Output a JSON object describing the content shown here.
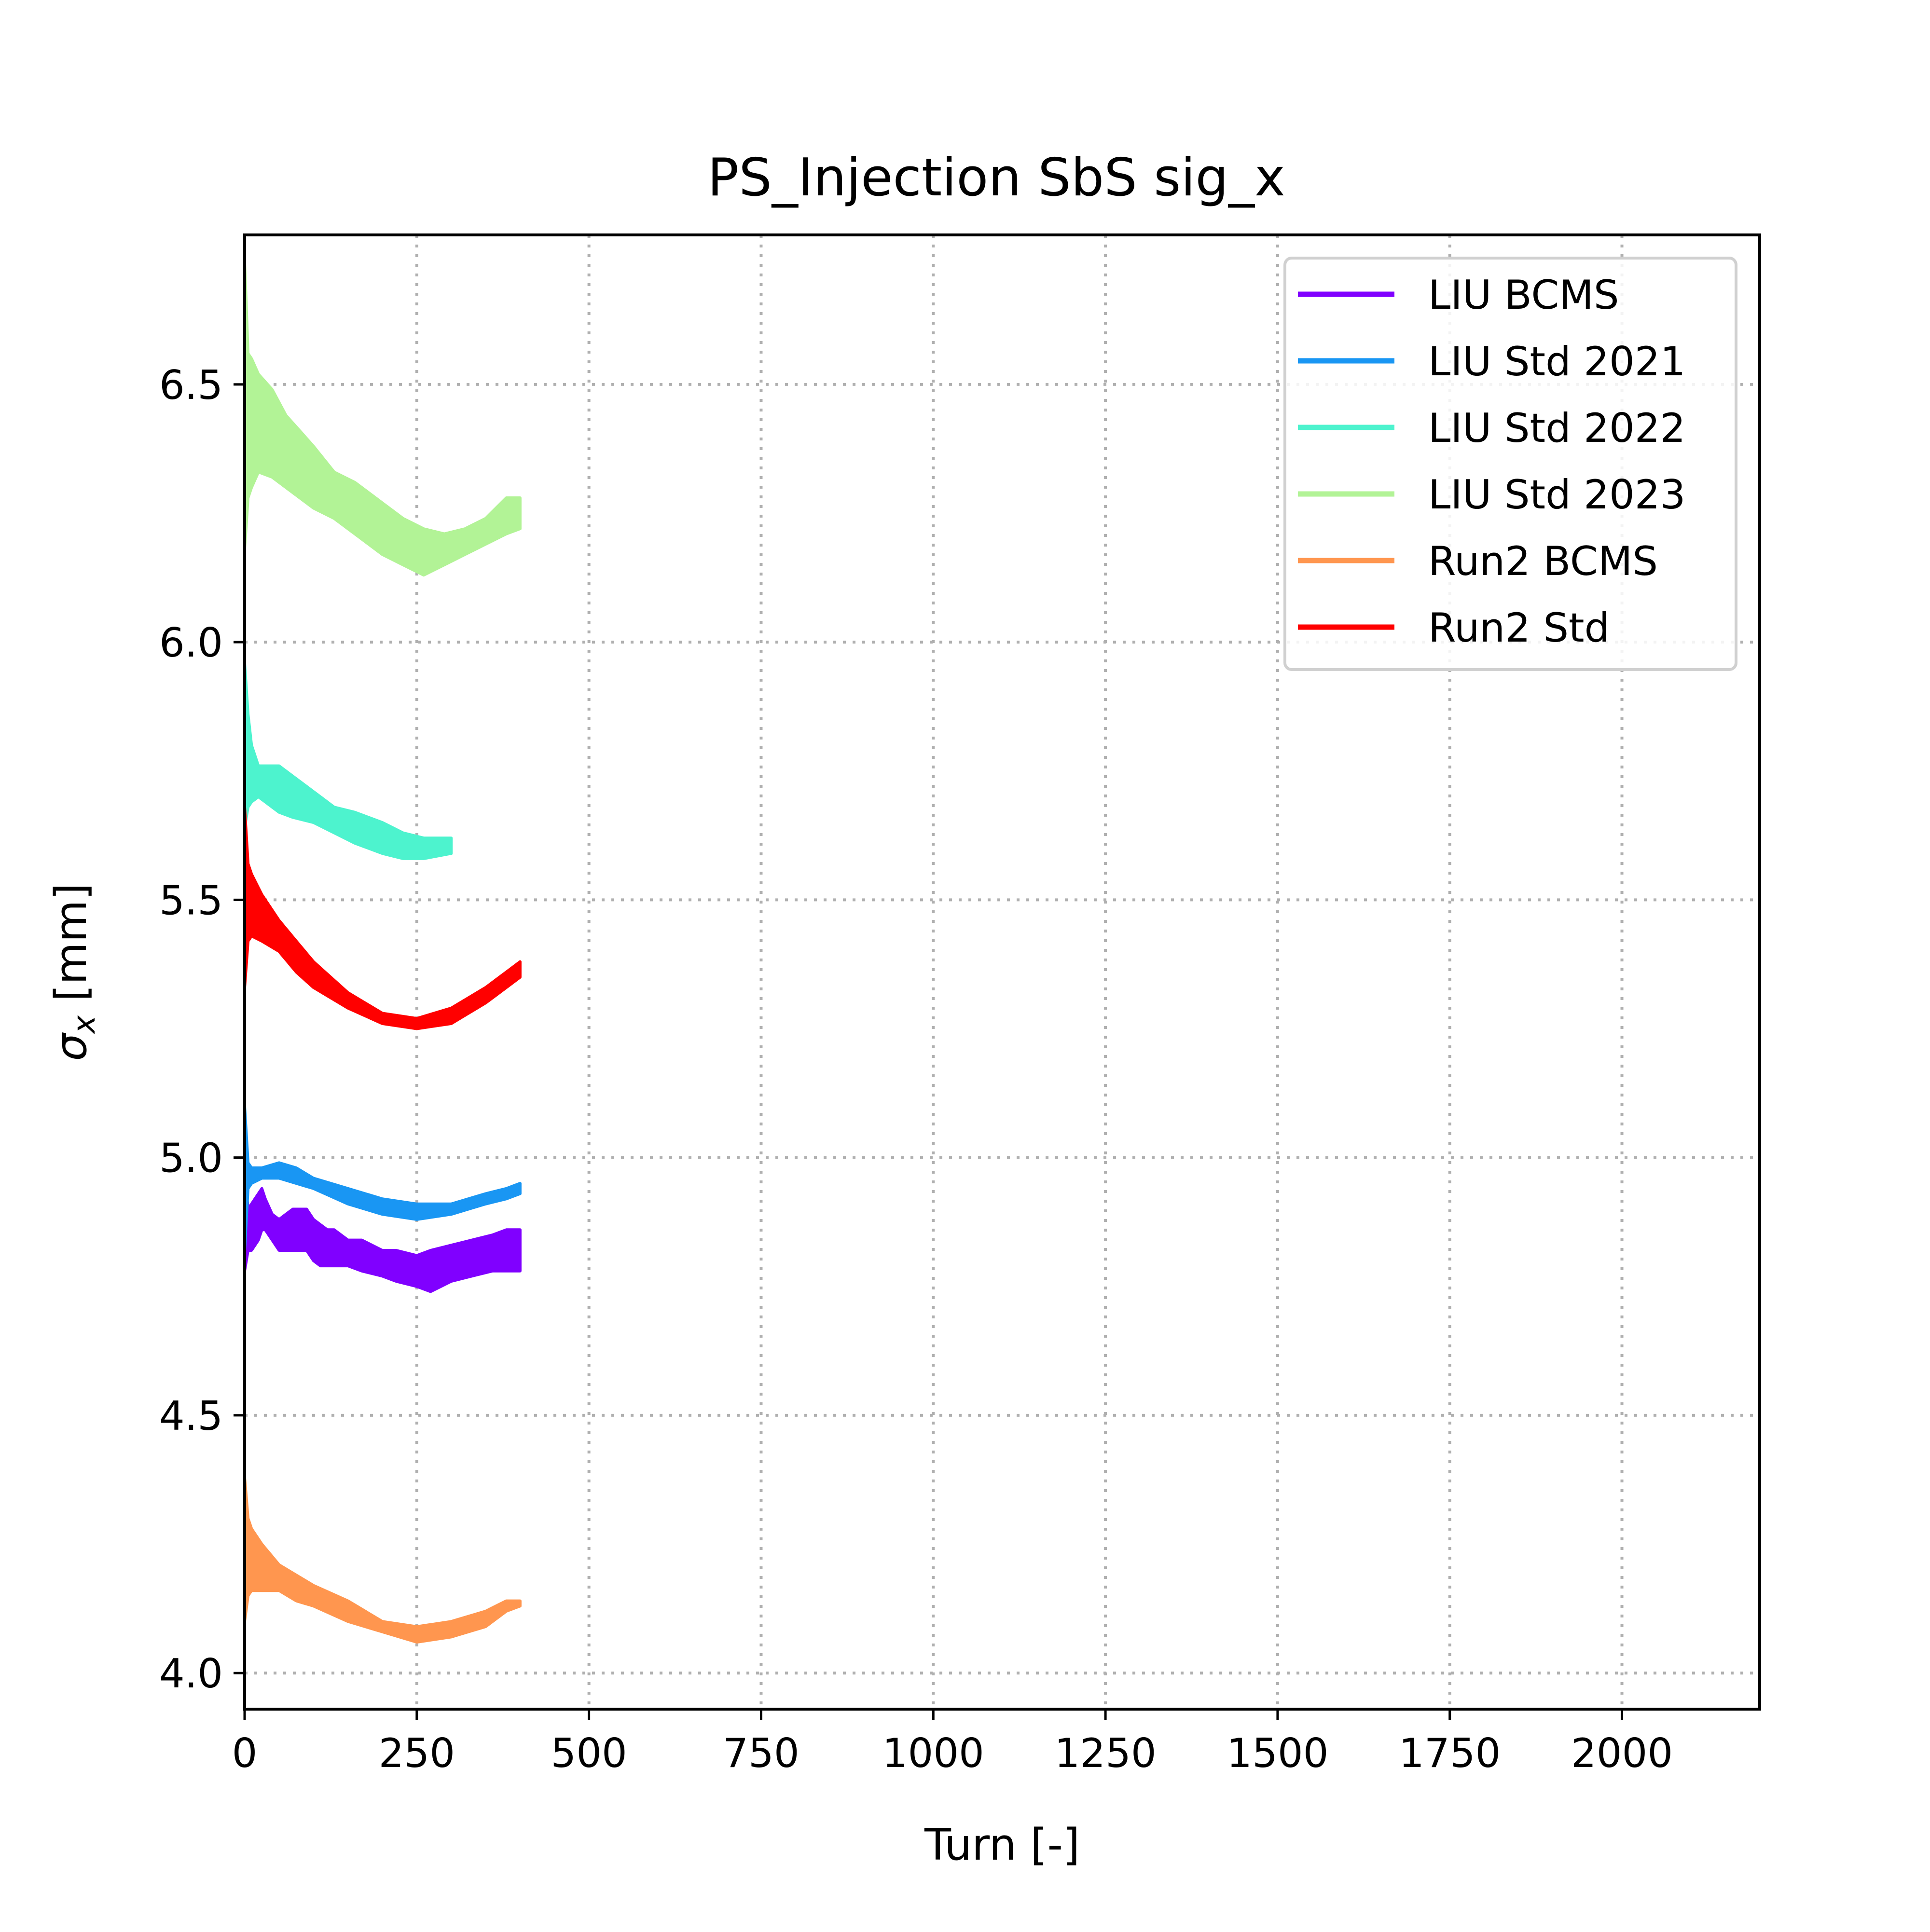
{
  "chart_data": {
    "type": "line",
    "title": "PS_Injection SbS sig_x",
    "xlabel": "Turn [-]",
    "ylabel_symbol": "σ",
    "ylabel_subscript": "x",
    "ylabel_unit": " [mm]",
    "xlim": [
      0,
      2200
    ],
    "ylim": [
      3.93,
      6.79
    ],
    "xticks": [
      0,
      250,
      500,
      750,
      1000,
      1250,
      1500,
      1750,
      2000
    ],
    "xtick_labels": [
      "0",
      "250",
      "500",
      "750",
      "1000",
      "1250",
      "1500",
      "1750",
      "2000"
    ],
    "yticks": [
      4.0,
      4.5,
      5.0,
      5.5,
      6.0,
      6.5
    ],
    "ytick_labels": [
      "4.0",
      "4.5",
      "5.0",
      "5.5",
      "6.0",
      "6.5"
    ],
    "grid": true,
    "legend_position": "top-right",
    "series": [
      {
        "name": "LIU BCMS",
        "color": "#8000ff",
        "x": [
          0,
          5,
          10,
          20,
          25,
          30,
          40,
          50,
          60,
          70,
          80,
          90,
          100,
          110,
          120,
          130,
          150,
          170,
          200,
          220,
          250,
          270,
          300,
          330,
          360,
          380,
          400
        ],
        "upper": [
          4.98,
          4.9,
          4.91,
          4.93,
          4.94,
          4.92,
          4.89,
          4.88,
          4.89,
          4.9,
          4.9,
          4.9,
          4.88,
          4.87,
          4.86,
          4.86,
          4.84,
          4.84,
          4.82,
          4.82,
          4.81,
          4.82,
          4.83,
          4.84,
          4.85,
          4.86,
          4.86
        ],
        "lower": [
          4.78,
          4.82,
          4.82,
          4.84,
          4.86,
          4.86,
          4.84,
          4.82,
          4.82,
          4.82,
          4.82,
          4.82,
          4.8,
          4.79,
          4.79,
          4.79,
          4.79,
          4.78,
          4.77,
          4.76,
          4.75,
          4.74,
          4.76,
          4.77,
          4.78,
          4.78,
          4.78
        ]
      },
      {
        "name": "LIU Std 2021",
        "color": "#1996f3",
        "x": [
          0,
          5,
          10,
          25,
          50,
          75,
          100,
          150,
          200,
          250,
          300,
          350,
          380,
          400
        ],
        "upper": [
          5.1,
          4.99,
          4.98,
          4.98,
          4.99,
          4.98,
          4.96,
          4.94,
          4.92,
          4.91,
          4.91,
          4.93,
          4.94,
          4.95
        ],
        "lower": [
          4.82,
          4.94,
          4.95,
          4.96,
          4.96,
          4.95,
          4.94,
          4.91,
          4.89,
          4.88,
          4.89,
          4.91,
          4.92,
          4.93
        ]
      },
      {
        "name": "LIU Std 2022",
        "color": "#4df3ce",
        "x": [
          0,
          5,
          10,
          20,
          30,
          50,
          70,
          100,
          130,
          160,
          200,
          230,
          260,
          300
        ],
        "upper": [
          5.96,
          5.86,
          5.8,
          5.76,
          5.76,
          5.76,
          5.74,
          5.71,
          5.68,
          5.67,
          5.65,
          5.63,
          5.62,
          5.62
        ],
        "lower": [
          5.64,
          5.68,
          5.69,
          5.7,
          5.69,
          5.67,
          5.66,
          5.65,
          5.63,
          5.61,
          5.59,
          5.58,
          5.58,
          5.59
        ]
      },
      {
        "name": "LIU Std 2023",
        "color": "#b2f396",
        "x": [
          0,
          5,
          10,
          20,
          40,
          60,
          80,
          100,
          130,
          160,
          200,
          230,
          260,
          290,
          320,
          350,
          380,
          400
        ],
        "upper": [
          6.74,
          6.56,
          6.55,
          6.52,
          6.49,
          6.44,
          6.41,
          6.38,
          6.33,
          6.31,
          6.27,
          6.24,
          6.22,
          6.21,
          6.22,
          6.24,
          6.28,
          6.28
        ],
        "lower": [
          6.18,
          6.28,
          6.3,
          6.33,
          6.32,
          6.3,
          6.28,
          6.26,
          6.24,
          6.21,
          6.17,
          6.15,
          6.13,
          6.15,
          6.17,
          6.19,
          6.21,
          6.22
        ]
      },
      {
        "name": "Run2 BCMS",
        "color": "#ff964f",
        "x": [
          0,
          5,
          10,
          25,
          50,
          75,
          100,
          150,
          200,
          250,
          300,
          350,
          380,
          400
        ],
        "upper": [
          4.38,
          4.3,
          4.28,
          4.25,
          4.21,
          4.19,
          4.17,
          4.14,
          4.1,
          4.09,
          4.1,
          4.12,
          4.14,
          4.14
        ],
        "lower": [
          4.1,
          4.15,
          4.16,
          4.16,
          4.16,
          4.14,
          4.13,
          4.1,
          4.08,
          4.06,
          4.07,
          4.09,
          4.12,
          4.13
        ]
      },
      {
        "name": "Run2 Std",
        "color": "#ff0000",
        "x": [
          0,
          5,
          10,
          25,
          50,
          75,
          100,
          150,
          200,
          250,
          300,
          350,
          380,
          400
        ],
        "upper": [
          5.68,
          5.57,
          5.55,
          5.51,
          5.46,
          5.42,
          5.38,
          5.32,
          5.28,
          5.27,
          5.29,
          5.33,
          5.36,
          5.38
        ],
        "lower": [
          5.33,
          5.42,
          5.43,
          5.42,
          5.4,
          5.36,
          5.33,
          5.29,
          5.26,
          5.25,
          5.26,
          5.3,
          5.33,
          5.35
        ]
      }
    ]
  }
}
